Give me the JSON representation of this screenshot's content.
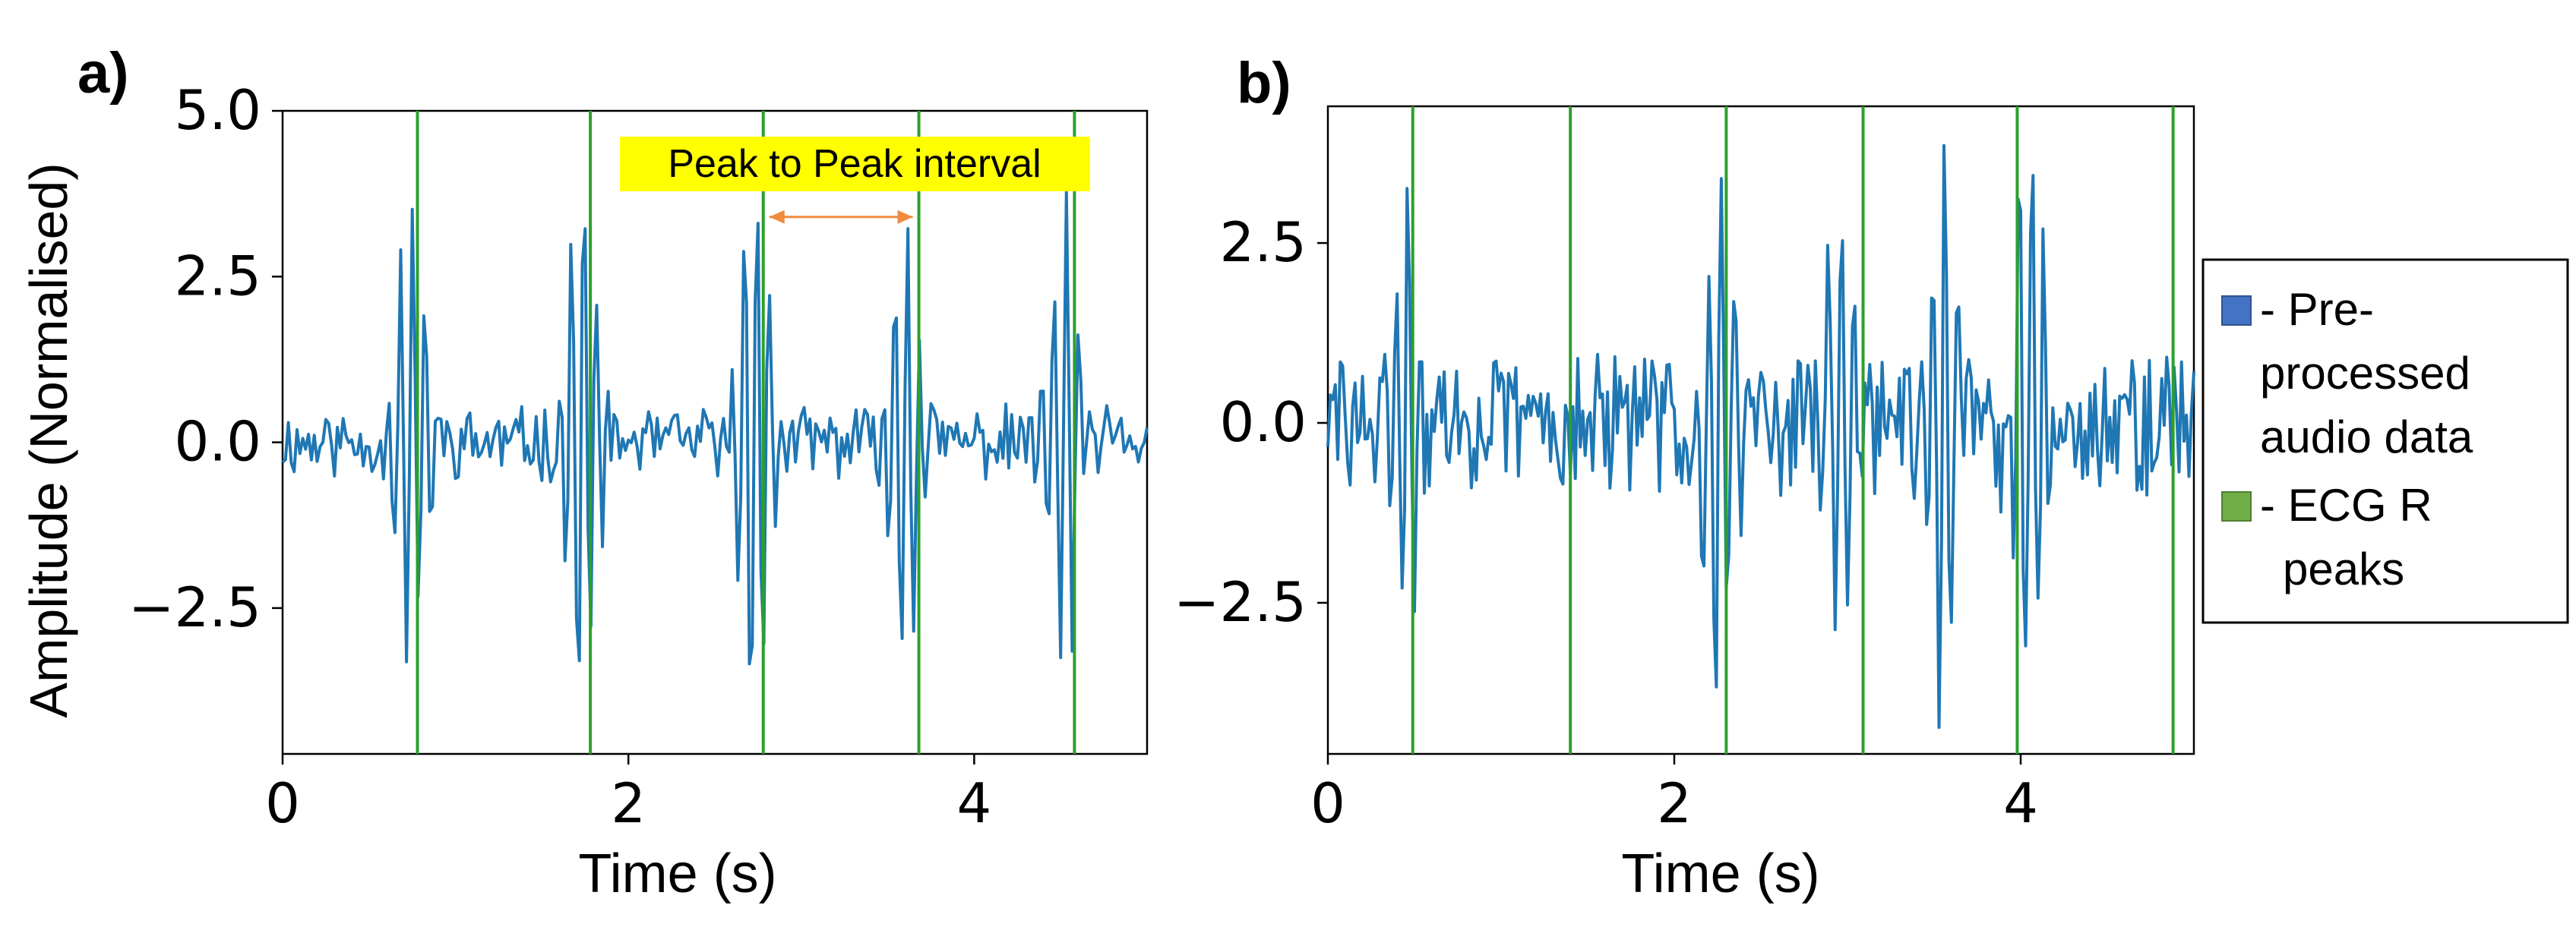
{
  "colors": {
    "signal": "#1f77b4",
    "r_peak": "#2ca02c",
    "annotation_bg": "#ffff00",
    "annotation_arrow": "#f08a3c",
    "legend_signal_swatch": "#4472c4",
    "legend_peak_swatch": "#70ad47"
  },
  "chart_data": [
    {
      "panel_label": "a)",
      "type": "line",
      "xlabel": "Time (s)",
      "ylabel": "Amplitude (Normalised)",
      "xlim": [
        0,
        5
      ],
      "ylim": [
        -4.7,
        5.0
      ],
      "xticks": [
        0,
        2,
        4
      ],
      "xtick_labels": [
        "0",
        "2",
        "4"
      ],
      "yticks": [
        5.0,
        2.5,
        0.0,
        -2.5
      ],
      "ytick_labels": [
        "5.0",
        "2.5",
        "0.0",
        "−2.5"
      ],
      "grid": false,
      "r_peaks_s": [
        0.78,
        1.78,
        2.78,
        3.68,
        4.58
      ],
      "annotation": {
        "text": "Peak to Peak interval",
        "x_from": 2.78,
        "x_to": 3.68,
        "y": 3.4
      },
      "beat_events": [
        {
          "t": 0.74,
          "amp": 1.0
        },
        {
          "t": 1.73,
          "amp": 1.1
        },
        {
          "t": 2.73,
          "amp": 1.15
        },
        {
          "t": 3.6,
          "amp": 0.95
        },
        {
          "t": 4.52,
          "amp": 1.0
        }
      ],
      "series": [
        {
          "name": "Pre-processed audio data",
          "type": "line",
          "sample_rate_hz": 60,
          "noise_amp": 0.5,
          "seed": 11
        },
        {
          "name": "ECG R peaks",
          "type": "vline"
        }
      ]
    },
    {
      "panel_label": "b)",
      "type": "line",
      "xlabel": "Time (s)",
      "ylabel": "",
      "xlim": [
        0,
        5
      ],
      "ylim": [
        -4.6,
        4.4
      ],
      "xticks": [
        0,
        2,
        4
      ],
      "xtick_labels": [
        "0",
        "2",
        "4"
      ],
      "yticks": [
        2.5,
        0.0,
        -2.5
      ],
      "ytick_labels": [
        "2.5",
        "0.0",
        "−2.5"
      ],
      "grid": false,
      "r_peaks_s": [
        0.49,
        1.4,
        2.3,
        3.09,
        3.98,
        4.88
      ],
      "beat_events": [
        {
          "t": 0.45,
          "amp": 0.85
        },
        {
          "t": 2.26,
          "amp": 1.0
        },
        {
          "t": 2.95,
          "amp": 0.9
        },
        {
          "t": 3.55,
          "amp": 1.05
        },
        {
          "t": 4.05,
          "amp": 1.1
        }
      ],
      "series": [
        {
          "name": "Pre-processed audio data",
          "type": "line",
          "sample_rate_hz": 70,
          "noise_amp": 1.0,
          "seed": 29
        },
        {
          "name": "ECG R peaks",
          "type": "vline"
        }
      ]
    }
  ],
  "legend": {
    "placement": "right",
    "entries": [
      {
        "lines": [
          "- Pre-",
          "processed",
          "audio data"
        ],
        "swatch": "legend_signal_swatch"
      },
      {
        "lines": [
          "- ECG R",
          "peaks"
        ],
        "swatch": "legend_peak_swatch"
      }
    ]
  }
}
